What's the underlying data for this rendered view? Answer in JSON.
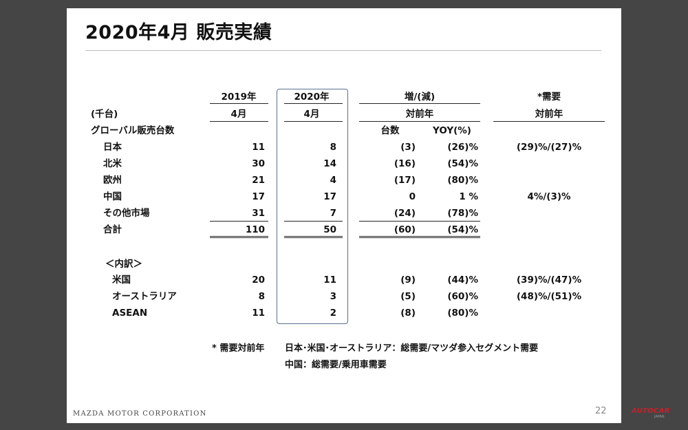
{
  "title": "2020年4月 販売実績",
  "headers": {
    "col2019_line1": "2019年",
    "col2019_line2": "4月",
    "col2020_line1": "2020年",
    "col2020_line2": "4月",
    "change_line1": "増/(減)",
    "change_line2": "対前年",
    "units": "台数",
    "yoy": "YOY(%)",
    "demand_line1": "*需要",
    "demand_line2": "対前年",
    "unit_label": "(千台)",
    "section": "グローバル販売台数"
  },
  "rows": [
    {
      "label": "日本",
      "y2019": "11",
      "y2020": "8",
      "diff": "(3)",
      "yoy": "(26)%",
      "demand": "(29)%/(27)%"
    },
    {
      "label": "北米",
      "y2019": "30",
      "y2020": "14",
      "diff": "(16)",
      "yoy": "(54)%",
      "demand": ""
    },
    {
      "label": "欧州",
      "y2019": "21",
      "y2020": "4",
      "diff": "(17)",
      "yoy": "(80)%",
      "demand": ""
    },
    {
      "label": "中国",
      "y2019": "17",
      "y2020": "17",
      "diff": "0",
      "yoy": "1 %",
      "demand": "4%/(3)%"
    },
    {
      "label": "その他市場",
      "y2019": "31",
      "y2020": "7",
      "diff": "(24)",
      "yoy": "(78)%",
      "demand": ""
    },
    {
      "label": "合計",
      "y2019": "110",
      "y2020": "50",
      "diff": "(60)",
      "yoy": "(54)%",
      "demand": ""
    }
  ],
  "breakdown_label": "＜内訳＞",
  "breakdown": [
    {
      "label": "米国",
      "y2019": "20",
      "y2020": "11",
      "diff": "(9)",
      "yoy": "(44)%",
      "demand": "(39)%/(47)%"
    },
    {
      "label": "オーストラリア",
      "y2019": "8",
      "y2020": "3",
      "diff": "(5)",
      "yoy": "(60)%",
      "demand": "(48)%/(51)%"
    },
    {
      "label": "ASEAN",
      "y2019": "11",
      "y2020": "2",
      "diff": "(8)",
      "yoy": "(80)%",
      "demand": ""
    }
  ],
  "notes": {
    "prefix": "* 需要対前年",
    "line1": "日本･米国･オーストラリア：総需要/マツダ参入セグメント需要",
    "line2": "中国：総需要/乗用車需要"
  },
  "footer": "MAZDA MOTOR CORPORATION",
  "page_number": "22",
  "logo": "AUTOCAR",
  "logo_sub": "JAPAN"
}
